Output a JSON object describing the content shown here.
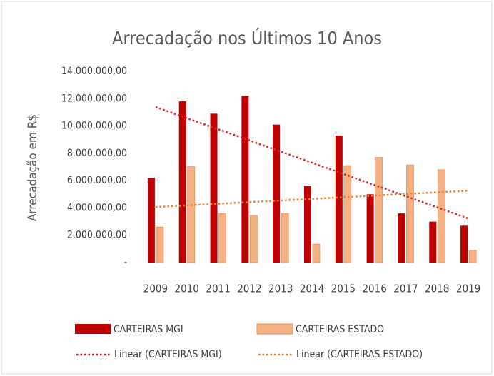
{
  "chart_data": {
    "type": "bar",
    "title": "Arrecadação nos Últimos 10 Anos",
    "y_label": "Arrecadação em R$",
    "categories": [
      "2009",
      "2010",
      "2011",
      "2012",
      "2013",
      "2014",
      "2015",
      "2016",
      "2017",
      "2018",
      "2019"
    ],
    "series": [
      {
        "name": "CARTEIRAS MGI",
        "color": "#c00000",
        "values": [
          6200000,
          11800000,
          10900000,
          12200000,
          10100000,
          5600000,
          9300000,
          5000000,
          3600000,
          3000000,
          2700000
        ],
        "trendline": {
          "name": "Linear (CARTEIRAS MGI)",
          "color": "#e02020"
        }
      },
      {
        "name": "CARTEIRAS ESTADO",
        "color": "#f4b183",
        "values": [
          2600000,
          7050000,
          3600000,
          3450000,
          3600000,
          1350000,
          7100000,
          7700000,
          7150000,
          6800000,
          900000
        ],
        "trendline": {
          "name": "Linear (CARTEIRAS ESTADO)",
          "color": "#ed7d31"
        }
      }
    ],
    "ylim": [
      0,
      14000000
    ],
    "yticks": [
      {
        "value": 0,
        "label": "-"
      },
      {
        "value": 2000000,
        "label": "2.000.000,00"
      },
      {
        "value": 4000000,
        "label": "4.000.000,00"
      },
      {
        "value": 6000000,
        "label": "6.000.000,00"
      },
      {
        "value": 8000000,
        "label": "8.000.000,00"
      },
      {
        "value": 10000000,
        "label": "10.000.000,00"
      },
      {
        "value": 12000000,
        "label": "12.000.000,00"
      },
      {
        "value": 14000000,
        "label": "14.000.000,00"
      }
    ],
    "grid": false
  }
}
